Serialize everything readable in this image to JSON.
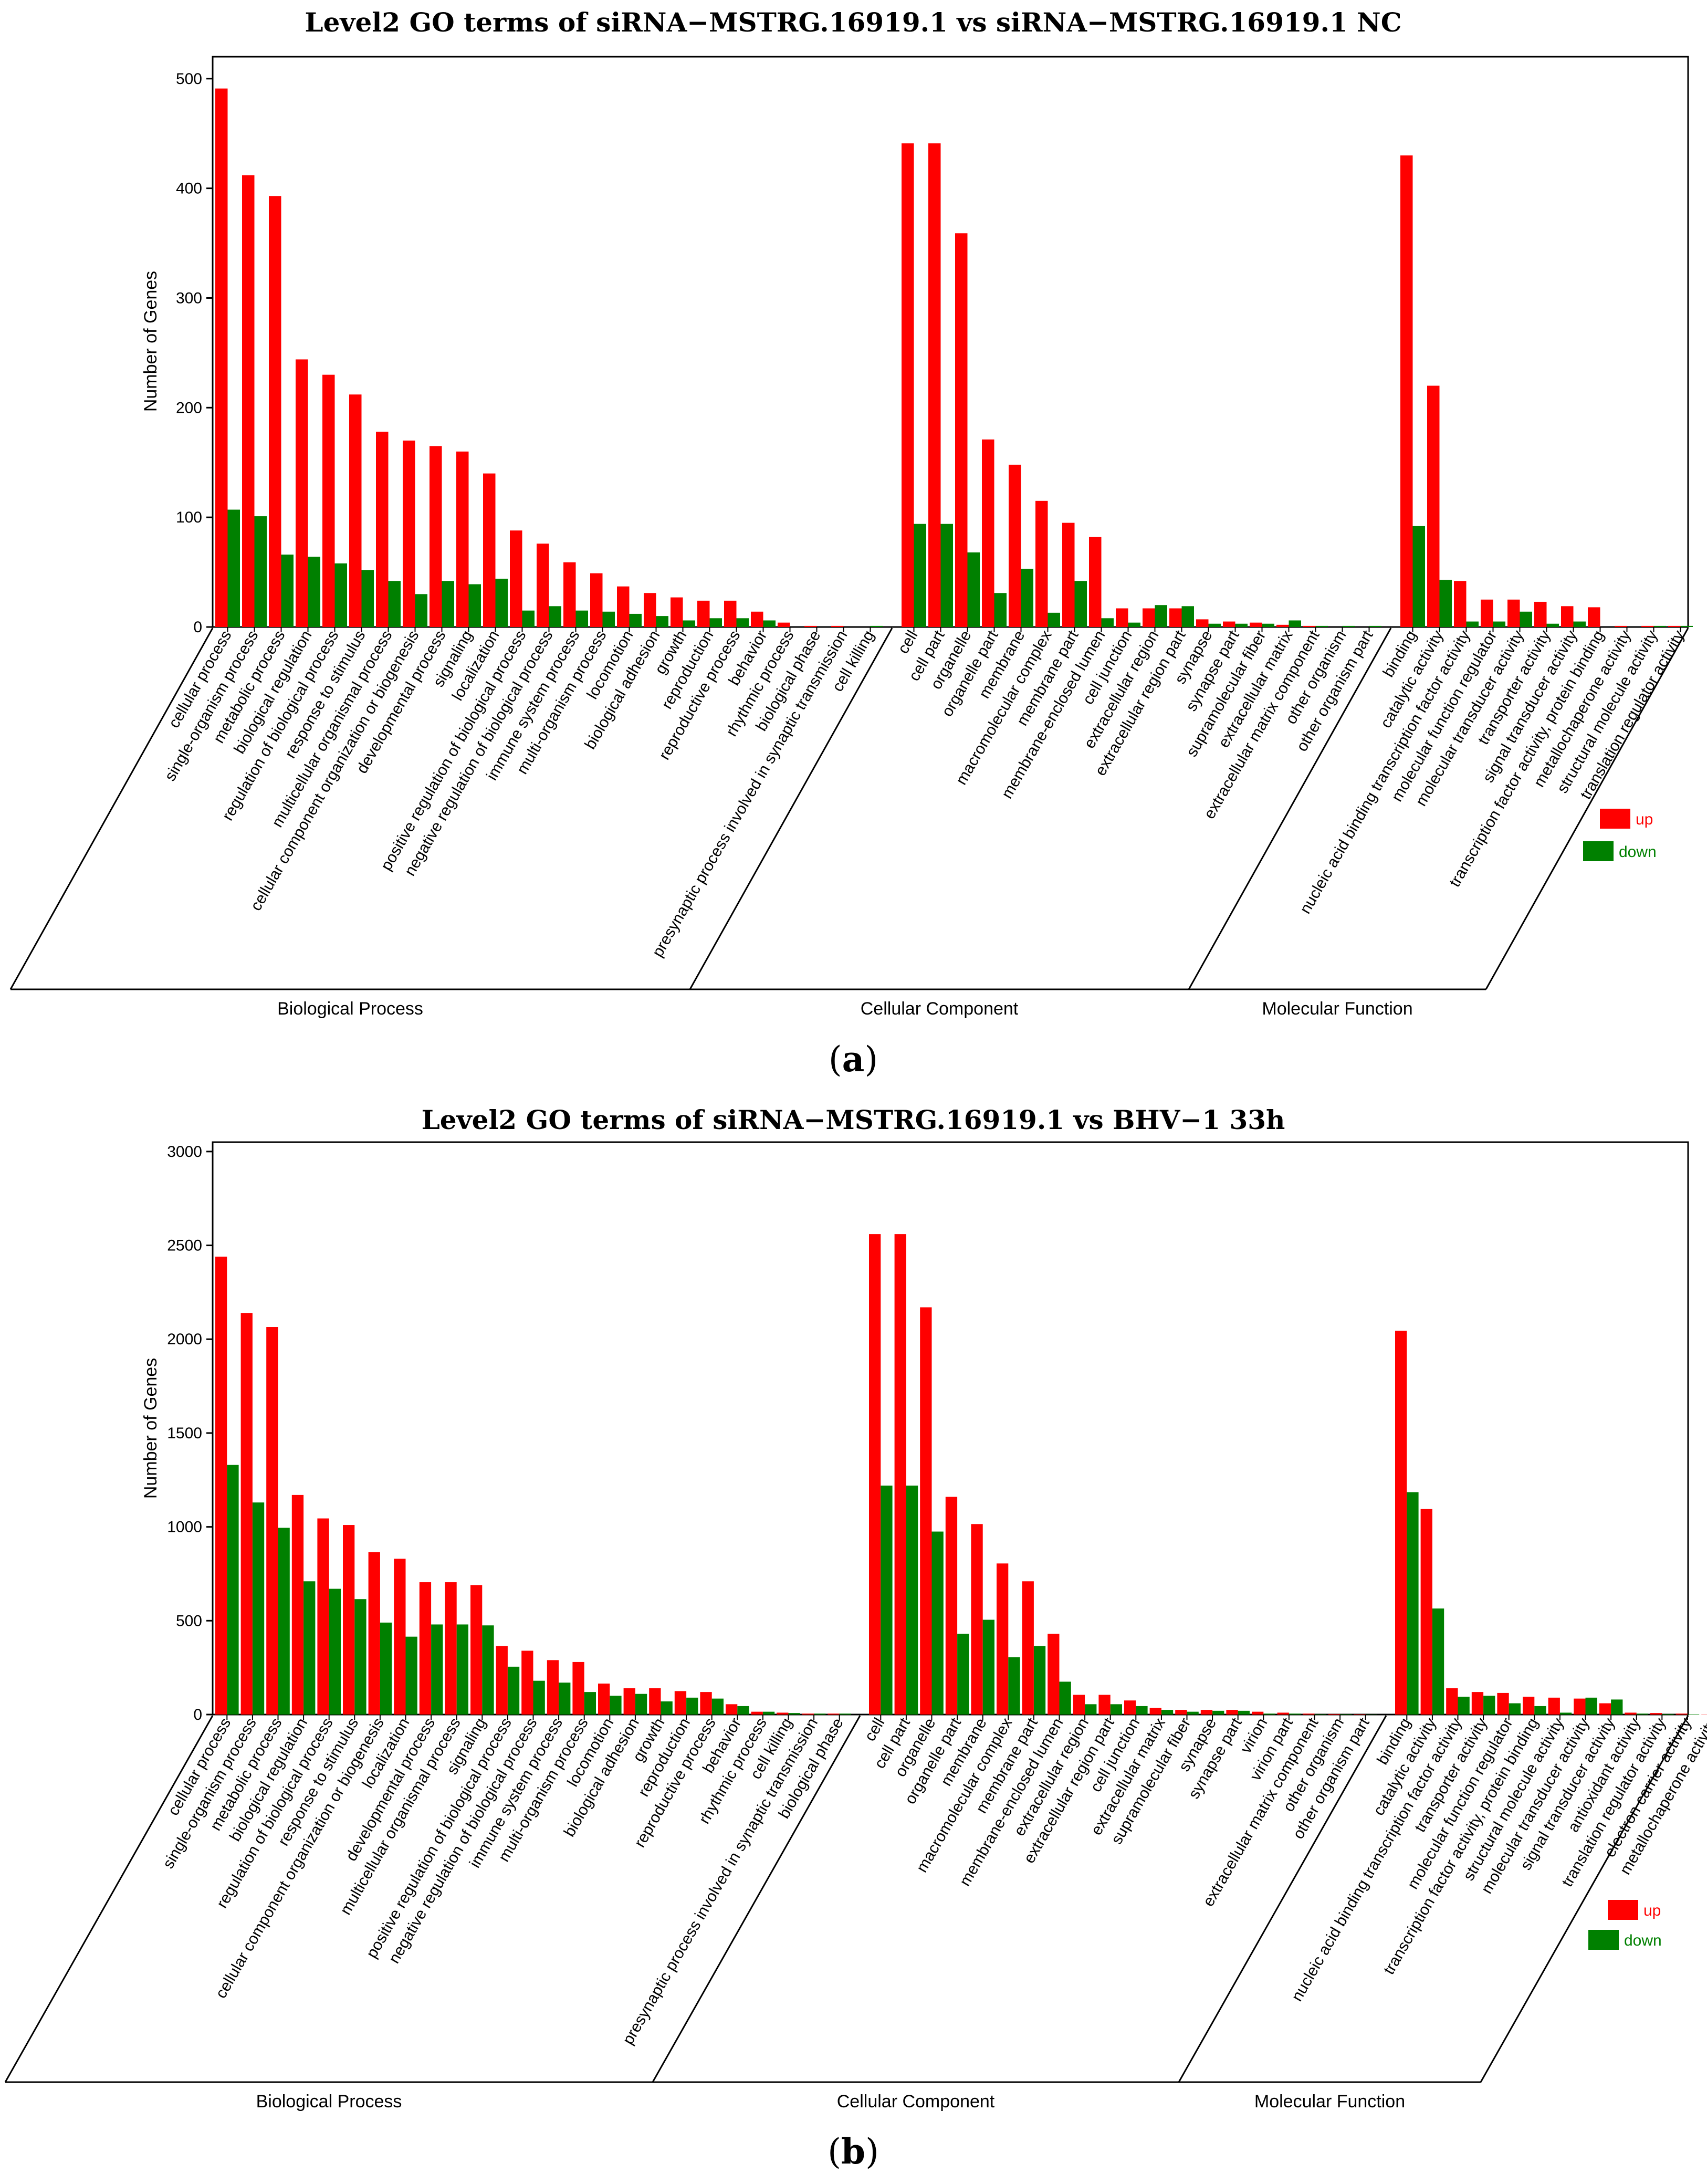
{
  "colors": {
    "up": "#ff0000",
    "down": "#008000"
  },
  "chart_data": [
    {
      "type": "bar",
      "title": "Level2 GO terms of siRNA−MSTRG.16919.1 vs siRNA−MSTRG.16919.1 NC",
      "caption_open": "(",
      "caption_letter": "a",
      "caption_close": ")",
      "ylabel": "Number of Genes",
      "ylim": [
        0,
        520
      ],
      "yticks": [
        0,
        100,
        200,
        300,
        400,
        500
      ],
      "legend": {
        "up": "up",
        "down": "down"
      },
      "groups": [
        {
          "name": "Biological Process",
          "categories": [
            "cellular process",
            "single-organism process",
            "metabolic process",
            "biological regulation",
            "regulation of biological process",
            "response to stimulus",
            "multicellular organismal process",
            "cellular component organization or biogenesis",
            "developmental process",
            "signaling",
            "localization",
            "positive regulation of biological process",
            "negative regulation of biological process",
            "immune system process",
            "multi-organism process",
            "locomotion",
            "biological adhesion",
            "growth",
            "reproduction",
            "reproductive process",
            "behavior",
            "rhythmic process",
            "biological phase",
            "presynaptic process involved in synaptic transmission",
            "cell killing"
          ],
          "series": [
            {
              "name": "up",
              "values": [
                491,
                412,
                393,
                244,
                230,
                212,
                178,
                170,
                165,
                160,
                140,
                88,
                76,
                59,
                49,
                37,
                31,
                27,
                24,
                24,
                14,
                4,
                1,
                1,
                0
              ]
            },
            {
              "name": "down",
              "values": [
                107,
                101,
                66,
                64,
                58,
                52,
                42,
                30,
                42,
                39,
                44,
                15,
                19,
                15,
                14,
                12,
                10,
                6,
                8,
                8,
                6,
                0,
                0,
                0,
                1
              ]
            }
          ]
        },
        {
          "name": "Cellular Component",
          "categories": [
            "cell",
            "cell part",
            "organelle",
            "organelle part",
            "membrane",
            "macromolecular complex",
            "membrane part",
            "membrane-enclosed lumen",
            "cell junction",
            "extracellular region",
            "extracellular region part",
            "synapse",
            "synapse part",
            "supramolecular fiber",
            "extracellular matrix",
            "extracellular matrix component",
            "other organism",
            "other organism part"
          ],
          "series": [
            {
              "name": "up",
              "values": [
                441,
                441,
                359,
                171,
                148,
                115,
                95,
                82,
                17,
                17,
                17,
                7,
                5,
                4,
                2,
                1,
                0,
                0
              ]
            },
            {
              "name": "down",
              "values": [
                94,
                94,
                68,
                31,
                53,
                13,
                42,
                8,
                4,
                20,
                19,
                3,
                3,
                3,
                6,
                1,
                1,
                1
              ]
            }
          ]
        },
        {
          "name": "Molecular Function",
          "categories": [
            "binding",
            "catalytic activity",
            "nucleic acid binding transcription factor activity",
            "molecular function regulator",
            "molecular transducer activity",
            "transporter activity",
            "signal transducer activity",
            "transcription factor activity, protein binding",
            "metallochaperone activity",
            "structural molecule activity",
            "translation regulator activity"
          ],
          "series": [
            {
              "name": "up",
              "values": [
                430,
                220,
                42,
                25,
                25,
                23,
                19,
                18,
                1,
                1,
                1
              ]
            },
            {
              "name": "down",
              "values": [
                92,
                43,
                5,
                5,
                14,
                3,
                5,
                0,
                0,
                1,
                1
              ]
            }
          ]
        }
      ]
    },
    {
      "type": "bar",
      "title": "Level2 GO terms of siRNA−MSTRG.16919.1 vs BHV−1 33h",
      "caption_open": "(",
      "caption_letter": "b",
      "caption_close": ")",
      "ylabel": "Number of Genes",
      "ylim": [
        0,
        3050
      ],
      "yticks": [
        0,
        500,
        1000,
        1500,
        2000,
        2500,
        3000
      ],
      "legend": {
        "up": "up",
        "down": "down"
      },
      "groups": [
        {
          "name": "Biological Process",
          "categories": [
            "cellular process",
            "single-organism process",
            "metabolic process",
            "biological regulation",
            "regulation of biological process",
            "response to stimulus",
            "cellular component organization or biogenesis",
            "localization",
            "developmental process",
            "multicellular organismal process",
            "signaling",
            "positive regulation of biological process",
            "negative regulation of biological process",
            "immune system process",
            "multi-organism process",
            "locomotion",
            "biological adhesion",
            "growth",
            "reproduction",
            "reproductive process",
            "behavior",
            "rhythmic process",
            "cell killing",
            "presynaptic process involved in synaptic transmission",
            "biological phase"
          ],
          "series": [
            {
              "name": "up",
              "values": [
                2440,
                2140,
                2065,
                1170,
                1045,
                1010,
                865,
                830,
                705,
                705,
                690,
                365,
                340,
                290,
                280,
                165,
                140,
                140,
                125,
                120,
                55,
                15,
                10,
                5,
                5
              ]
            },
            {
              "name": "down",
              "values": [
                1330,
                1130,
                995,
                710,
                670,
                615,
                490,
                415,
                480,
                480,
                475,
                255,
                180,
                170,
                120,
                100,
                110,
                70,
                90,
                85,
                45,
                15,
                8,
                5,
                5
              ]
            }
          ]
        },
        {
          "name": "Cellular Component",
          "categories": [
            "cell",
            "cell part",
            "organelle",
            "organelle part",
            "membrane",
            "macromolecular complex",
            "membrane part",
            "membrane-enclosed lumen",
            "extracellular region",
            "extracellular region part",
            "cell junction",
            "extracellular matrix",
            "supramolecular fiber",
            "synapse",
            "synapse part",
            "virion",
            "virion part",
            "extracellular matrix component",
            "other organism",
            "other organism part"
          ],
          "series": [
            {
              "name": "up",
              "values": [
                2560,
                2560,
                2170,
                1160,
                1015,
                805,
                710,
                430,
                105,
                105,
                75,
                35,
                25,
                25,
                25,
                15,
                10,
                5,
                3,
                2
              ]
            },
            {
              "name": "down",
              "values": [
                1220,
                1220,
                975,
                430,
                505,
                305,
                365,
                175,
                55,
                55,
                45,
                25,
                15,
                20,
                20,
                5,
                5,
                2,
                2,
                1
              ]
            }
          ]
        },
        {
          "name": "Molecular Function",
          "categories": [
            "binding",
            "catalytic activity",
            "nucleic acid binding transcription factor activity",
            "transporter activity",
            "molecular function regulator",
            "transcription factor activity, protein binding",
            "structural molecule activity",
            "molecular transducer activity",
            "signal transducer activity",
            "antioxidant activity",
            "translation regulator activity",
            "electron carrier activity",
            "metallochaperone activity"
          ],
          "series": [
            {
              "name": "up",
              "values": [
                2045,
                1095,
                140,
                120,
                115,
                95,
                90,
                85,
                60,
                10,
                8,
                5,
                1
              ]
            },
            {
              "name": "down",
              "values": [
                1185,
                565,
                95,
                100,
                60,
                45,
                10,
                90,
                80,
                5,
                3,
                2,
                1
              ]
            }
          ]
        }
      ]
    }
  ]
}
